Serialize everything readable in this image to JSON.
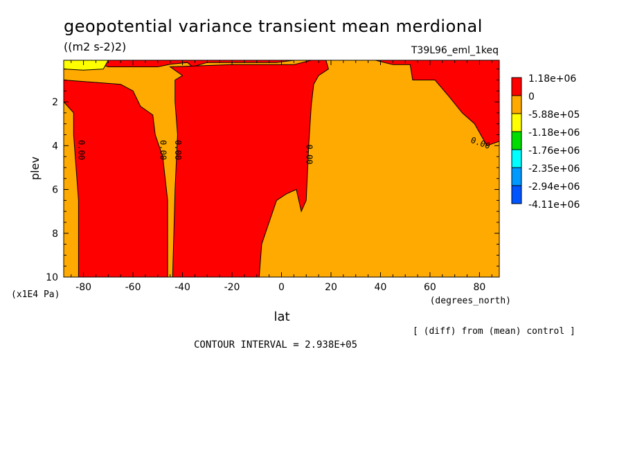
{
  "chart_data": {
    "type": "heatmap",
    "title": "geopotential variance transient mean merdional",
    "subtitle": "((m2 s-2)2)",
    "run_label": "T39L96_eml_1keq",
    "xlabel": "lat",
    "x_units": "(degrees_north)",
    "ylabel": "plev",
    "y_units": "(x1E4 Pa)",
    "footnote": "[ (diff) from (mean) control ]",
    "contour_interval": "CONTOUR INTERVAL = 2.938E+05",
    "xlim": [
      -88,
      88
    ],
    "ylim": [
      10,
      0.1
    ],
    "x_ticks": [
      -80,
      -60,
      -40,
      -20,
      0,
      20,
      40,
      60,
      80
    ],
    "y_ticks": [
      2,
      4,
      6,
      8,
      10
    ],
    "grid": false,
    "legend_position": "right",
    "legend": [
      {
        "label": "1.18e+06",
        "color": "#ff0000"
      },
      {
        "label": "0",
        "color": "#ffaa00"
      },
      {
        "label": "-5.88e+05",
        "color": "#ffff00"
      },
      {
        "label": "-1.18e+06",
        "color": "#00dd00"
      },
      {
        "label": "-1.76e+06",
        "color": "#00ffff"
      },
      {
        "label": "-2.35e+06",
        "color": "#0099ff"
      },
      {
        "label": "-2.94e+06",
        "color": "#0055ff"
      },
      {
        "label": "-4.11e+06",
        "color": ""
      }
    ],
    "contour_labels": [
      {
        "text": "0.00",
        "lat": -82,
        "plev": 4.2
      },
      {
        "text": "0.00",
        "lat": -49,
        "plev": 4.2
      },
      {
        "text": "0.00",
        "lat": -43,
        "plev": 4.2
      },
      {
        "text": "0.00",
        "lat": 10,
        "plev": 4.4
      },
      {
        "text": "0.00",
        "lat": 80,
        "plev": 4.0
      }
    ],
    "regions": [
      {
        "name": "background",
        "value_class": "0",
        "polygon": [
          [
            -88,
            0.1
          ],
          [
            88,
            0.1
          ],
          [
            88,
            10
          ],
          [
            -88,
            10
          ]
        ]
      },
      {
        "name": "top-left-positive",
        "value_class": "1.18e+06",
        "polygon": [
          [
            -88,
            0.1
          ],
          [
            -77,
            0.1
          ],
          [
            -70,
            0.4
          ],
          [
            -50,
            0.4
          ],
          [
            -45,
            0.28
          ],
          [
            -38,
            0.2
          ],
          [
            -36,
            0.4
          ],
          [
            -30,
            0.2
          ],
          [
            -2,
            0.2
          ],
          [
            5,
            0.1
          ],
          [
            -88,
            0.1
          ]
        ]
      },
      {
        "name": "southern-positive-band",
        "value_class": "1.18e+06",
        "polygon": [
          [
            -88,
            1.0
          ],
          [
            -65,
            1.2
          ],
          [
            -60,
            1.5
          ],
          [
            -57,
            2.2
          ],
          [
            -52,
            2.6
          ],
          [
            -51,
            3.5
          ],
          [
            -48,
            4.5
          ],
          [
            -46,
            6.5
          ],
          [
            -46,
            10
          ],
          [
            -82,
            10
          ],
          [
            -82,
            6.5
          ],
          [
            -84,
            3.5
          ],
          [
            -84,
            2.5
          ],
          [
            -88,
            2.0
          ]
        ]
      },
      {
        "name": "central-positive-band",
        "value_class": "1.18e+06",
        "polygon": [
          [
            -44,
            10
          ],
          [
            -43,
            6
          ],
          [
            -42,
            3.5
          ],
          [
            -43,
            2.0
          ],
          [
            -43,
            1.0
          ],
          [
            -40,
            0.8
          ],
          [
            -45,
            0.4
          ],
          [
            -20,
            0.3
          ],
          [
            5,
            0.3
          ],
          [
            12,
            0.1
          ],
          [
            18,
            0.1
          ],
          [
            19,
            0.5
          ],
          [
            15,
            0.8
          ],
          [
            13,
            1.2
          ],
          [
            12,
            2.2
          ],
          [
            11,
            4.0
          ],
          [
            10,
            6.5
          ],
          [
            8,
            7.0
          ],
          [
            6,
            6.0
          ],
          [
            2,
            6.2
          ],
          [
            -2,
            6.5
          ],
          [
            -5,
            7.5
          ],
          [
            -8,
            8.5
          ],
          [
            -9,
            10
          ]
        ]
      },
      {
        "name": "northern-positive-cap",
        "value_class": "1.18e+06",
        "polygon": [
          [
            19,
            0.1
          ],
          [
            88,
            0.1
          ],
          [
            88,
            3.8
          ],
          [
            83,
            4.0
          ],
          [
            78,
            3.0
          ],
          [
            73,
            2.5
          ],
          [
            68,
            1.8
          ],
          [
            62,
            1.0
          ],
          [
            53,
            1.0
          ],
          [
            52,
            0.3
          ],
          [
            45,
            0.3
          ],
          [
            38,
            0.1
          ]
        ]
      },
      {
        "name": "south-pole-negative",
        "value_class": "-5.88e+05",
        "polygon": [
          [
            -88,
            0.1
          ],
          [
            -70,
            0.1
          ],
          [
            -72,
            0.5
          ],
          [
            -80,
            0.55
          ],
          [
            -88,
            0.5
          ]
        ]
      }
    ]
  }
}
